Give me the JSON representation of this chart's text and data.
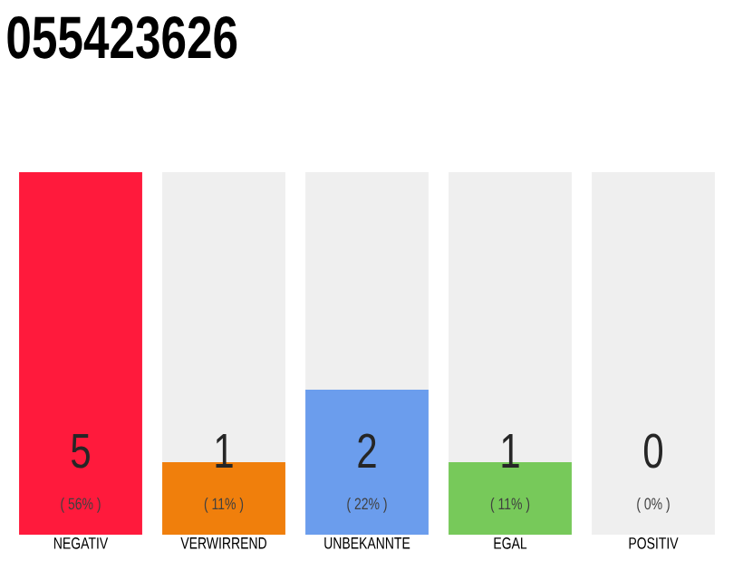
{
  "chart_data": {
    "type": "bar",
    "title": "055423626",
    "categories": [
      "NEGATIV",
      "VERWIRREND",
      "UNBEKANNTE",
      "EGAL",
      "POSITIV"
    ],
    "values": [
      5,
      1,
      2,
      1,
      0
    ],
    "colors": [
      "#ff1a3c",
      "#f07f0c",
      "#6b9ded",
      "#77c95a",
      "#9e9e9e"
    ],
    "value_labels": [
      "5",
      "1",
      "2",
      "1",
      "0"
    ],
    "annotations": [
      "( 56% )",
      "( 11% )",
      "( 22% )",
      "( 11% )",
      "( 0% )"
    ],
    "bands": [
      {
        "axis": "y",
        "from": 0,
        "to": 5,
        "color": "#efefef"
      }
    ],
    "ylim": [
      0,
      5
    ],
    "tick_labels": "x"
  }
}
